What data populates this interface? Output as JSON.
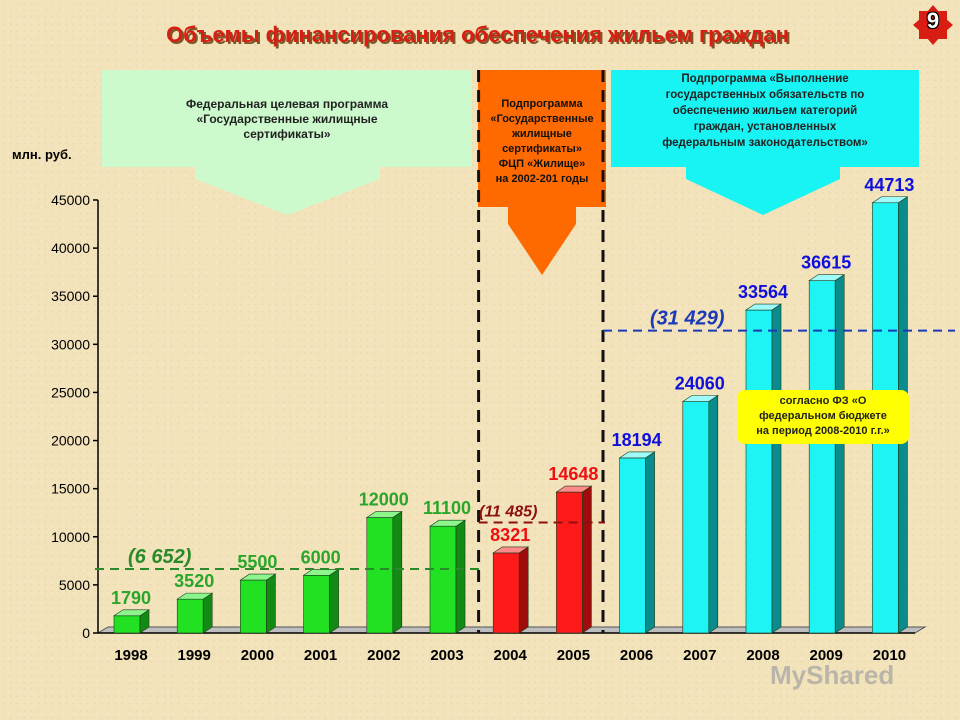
{
  "title": "Объемы финансирования обеспечения жильем граждан",
  "slide_number": "9",
  "unit_label": "млн. руб.",
  "callouts": {
    "program_1": [
      "Федеральная целевая программа",
      "«Государственные жилищные",
      "сертификаты»"
    ],
    "program_2": [
      "Подпрограмма",
      "«Государственные",
      "жилищные",
      "сертификаты»",
      "ФЦП «Жилище»",
      "на 2002-201 годы"
    ],
    "program_3": [
      "Подпрограмма «Выполнение",
      "государственных обязательств по",
      "обеспечению жильем категорий",
      "граждан, установленных",
      "федеральным законодательством»"
    ]
  },
  "note": [
    "согласно ФЗ «О",
    "федеральном бюджете",
    "на период 2008-2010 г.г.»"
  ],
  "watermark": "MyShared",
  "colors": {
    "green": "#22e022",
    "red": "#ff1a1a",
    "cyan": "#1ef4f4",
    "title": "#d81e12"
  },
  "chart_data": {
    "type": "bar",
    "categories": [
      "1998",
      "1999",
      "2000",
      "2001",
      "2002",
      "2003",
      "2004",
      "2005",
      "2006",
      "2007",
      "2008",
      "2009",
      "2010"
    ],
    "values": [
      1790,
      3520,
      5500,
      6000,
      12000,
      11100,
      8321,
      14648,
      18194,
      24060,
      33564,
      36615,
      44713
    ],
    "value_labels": [
      "1790",
      "3520",
      "5500",
      "6000",
      "12000",
      "11100",
      "8321",
      "14648",
      "18194",
      "24060",
      "33564",
      "36615",
      "44713"
    ],
    "bar_groups": [
      "green",
      "green",
      "green",
      "green",
      "green",
      "green",
      "red",
      "red",
      "cyan",
      "cyan",
      "cyan",
      "cyan",
      "cyan"
    ],
    "yticks": [
      0,
      5000,
      10000,
      15000,
      20000,
      25000,
      30000,
      35000,
      40000,
      45000
    ],
    "ytick_labels": [
      "0",
      "5000",
      "10000",
      "15000",
      "20000",
      "25000",
      "30000",
      "35000",
      "40000",
      "45000"
    ],
    "ylim": [
      0,
      45000
    ],
    "averages": [
      {
        "label": "(6 652)",
        "value": 6652,
        "from": "1998",
        "to": "2003",
        "color": "#2a8a2a"
      },
      {
        "label": "(11 485)",
        "value": 11485,
        "from": "2004",
        "to": "2005",
        "color": "#8b1010"
      },
      {
        "label": "(31 429)",
        "value": 31429,
        "from": "2006",
        "to": "2010",
        "color": "#1a3ab8"
      }
    ]
  }
}
